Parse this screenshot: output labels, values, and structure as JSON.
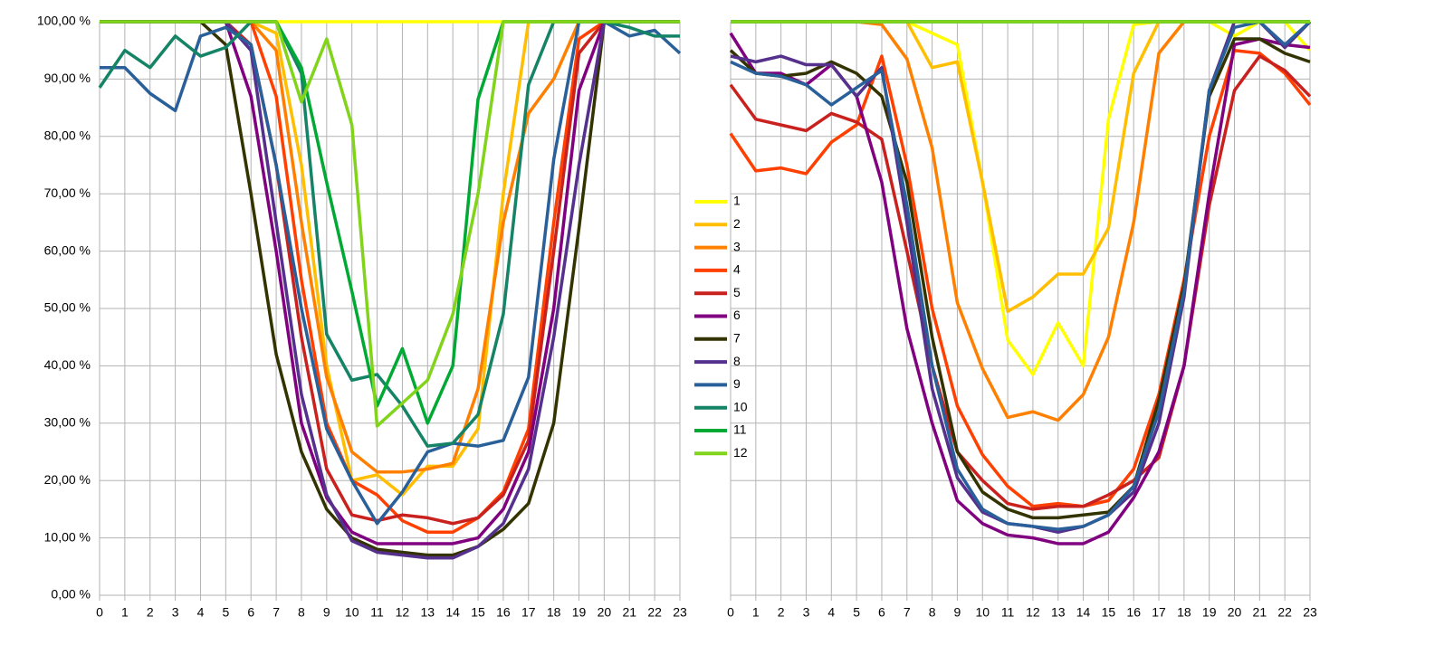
{
  "chart_data": [
    {
      "type": "line",
      "x": [
        0,
        1,
        2,
        3,
        4,
        5,
        6,
        7,
        8,
        9,
        10,
        11,
        12,
        13,
        14,
        15,
        16,
        17,
        18,
        19,
        20,
        21,
        22,
        23
      ],
      "xlim": [
        0,
        23
      ],
      "ylim": [
        0,
        100
      ],
      "yticks": [
        {
          "value": 0,
          "label": "0,00 %"
        },
        {
          "value": 10,
          "label": "10,00 %"
        },
        {
          "value": 20,
          "label": "20,00 %"
        },
        {
          "value": 30,
          "label": "30,00 %"
        },
        {
          "value": 40,
          "label": "40,00 %"
        },
        {
          "value": 50,
          "label": "50,00 %"
        },
        {
          "value": 60,
          "label": "60,00 %"
        },
        {
          "value": 70,
          "label": "70,00 %"
        },
        {
          "value": 80,
          "label": "80,00 %"
        },
        {
          "value": 90,
          "label": "90,00 %"
        },
        {
          "value": 100,
          "label": "100,00 %"
        }
      ],
      "grid": true,
      "series": [
        {
          "name": "1",
          "color": "#ffff00",
          "values": [
            100,
            100,
            100,
            100,
            100,
            100,
            100,
            100,
            100,
            100,
            100,
            100,
            100,
            100,
            100,
            100,
            100,
            100,
            100,
            100,
            100,
            100,
            100,
            100
          ]
        },
        {
          "name": "2",
          "color": "#ffbf00",
          "values": [
            100,
            100,
            100,
            100,
            100,
            100,
            100,
            98,
            75,
            40,
            20,
            21,
            17.5,
            22.5,
            22.5,
            29,
            70,
            100,
            100,
            100,
            100,
            100,
            100,
            100
          ]
        },
        {
          "name": "3",
          "color": "#ff8000",
          "values": [
            100,
            100,
            100,
            100,
            100,
            100,
            100,
            95,
            65,
            38,
            25,
            21.5,
            21.5,
            22,
            23,
            36,
            65,
            84,
            90,
            100,
            100,
            100,
            100,
            100
          ]
        },
        {
          "name": "4",
          "color": "#ff4000",
          "values": [
            100,
            100,
            100,
            100,
            100,
            100,
            100,
            87,
            55,
            30,
            20,
            17.5,
            13,
            11,
            11,
            13.5,
            18,
            29,
            65,
            97,
            100,
            100,
            100,
            100
          ]
        },
        {
          "name": "5",
          "color": "#c9211e",
          "values": [
            100,
            100,
            100,
            100,
            100,
            100,
            96,
            75,
            45,
            22,
            14,
            13,
            14,
            13.5,
            12.5,
            13.5,
            17.5,
            27,
            60,
            94.5,
            100,
            100,
            100,
            100
          ]
        },
        {
          "name": "6",
          "color": "#800080",
          "values": [
            100,
            100,
            100,
            100,
            100,
            100,
            87,
            60,
            30,
            17,
            11,
            9,
            9,
            9,
            9,
            10,
            15,
            25,
            50,
            88,
            100,
            100,
            100,
            100
          ]
        },
        {
          "name": "7",
          "color": "#333300",
          "values": [
            100,
            100,
            100,
            100,
            100,
            96,
            70,
            42,
            25,
            15,
            10,
            8,
            7.5,
            7,
            7,
            8.5,
            11.5,
            16,
            30,
            64,
            100,
            100,
            100,
            100
          ]
        },
        {
          "name": "8",
          "color": "#55308d",
          "values": [
            100,
            100,
            100,
            100,
            100,
            100,
            95,
            65,
            35,
            17.5,
            9.5,
            7.5,
            7,
            6.5,
            6.5,
            8.5,
            12.5,
            22,
            45,
            75,
            100,
            100,
            100,
            100
          ]
        },
        {
          "name": "9",
          "color": "#2a6099",
          "values": [
            92,
            92,
            87.5,
            84.5,
            97.5,
            99,
            96,
            75,
            50,
            29,
            20,
            12.5,
            18,
            25,
            26.5,
            26,
            27,
            38,
            76,
            100,
            100,
            97.5,
            98.5,
            94.5
          ]
        },
        {
          "name": "10",
          "color": "#158466",
          "values": [
            88.5,
            95,
            92,
            97.5,
            94,
            95.5,
            100,
            100,
            91,
            45.5,
            37.5,
            38.5,
            33,
            26,
            26.5,
            31.5,
            49,
            89,
            100,
            100,
            100,
            99,
            97.5,
            97.5
          ]
        },
        {
          "name": "11",
          "color": "#00a933",
          "values": [
            100,
            100,
            100,
            100,
            100,
            100,
            100,
            100,
            92,
            72,
            53,
            33,
            43,
            30,
            40,
            86.5,
            100,
            100,
            100,
            100,
            100,
            100,
            100,
            100
          ]
        },
        {
          "name": "12",
          "color": "#81d41a",
          "values": [
            100,
            100,
            100,
            100,
            100,
            100,
            100,
            100,
            86,
            97,
            82,
            29.5,
            33.5,
            37.5,
            49,
            70,
            100,
            100,
            100,
            100,
            100,
            100,
            100,
            100
          ]
        }
      ]
    },
    {
      "type": "line",
      "x": [
        0,
        1,
        2,
        3,
        4,
        5,
        6,
        7,
        8,
        9,
        10,
        11,
        12,
        13,
        14,
        15,
        16,
        17,
        18,
        19,
        20,
        21,
        22,
        23
      ],
      "xlim": [
        0,
        23
      ],
      "ylim": [
        0,
        100
      ],
      "yticks": [
        0,
        10,
        20,
        30,
        40,
        50,
        60,
        70,
        80,
        90,
        100
      ],
      "grid": true,
      "series": [
        {
          "color": "#ffff00",
          "values": [
            100,
            100,
            100,
            100,
            100,
            100,
            100,
            100,
            98,
            96,
            72,
            44.5,
            38.5,
            47.5,
            40,
            83,
            99.5,
            100,
            100,
            100,
            97.5,
            100,
            100,
            95
          ]
        },
        {
          "color": "#ffbf00",
          "values": [
            100,
            100,
            100,
            100,
            100,
            100,
            100,
            100,
            92,
            93,
            72,
            49.5,
            52,
            56,
            56,
            64,
            91,
            100,
            100,
            100,
            100,
            100,
            100,
            100
          ]
        },
        {
          "color": "#ff8000",
          "values": [
            100,
            100,
            100,
            100,
            100,
            100,
            99.5,
            93.5,
            78,
            51,
            39.5,
            31,
            32,
            30.5,
            35,
            45,
            65,
            94.5,
            100,
            100,
            100,
            100,
            100,
            100
          ]
        },
        {
          "color": "#ff4000",
          "values": [
            80.5,
            74,
            74.5,
            73.5,
            79,
            82,
            94,
            75,
            50,
            33,
            24.5,
            19,
            15.5,
            16,
            15.5,
            16.5,
            22,
            35,
            55,
            80,
            95,
            94.5,
            91,
            85.5
          ]
        },
        {
          "color": "#c9211e",
          "values": [
            89,
            83,
            82,
            81,
            84,
            82.5,
            79.5,
            60,
            40,
            25,
            20,
            16,
            15,
            15.5,
            15.5,
            17.5,
            20,
            24,
            40,
            68,
            88,
            94,
            91.5,
            87
          ]
        },
        {
          "color": "#800080",
          "values": [
            98,
            91,
            91,
            89,
            92.5,
            87,
            72,
            46.5,
            30,
            16.5,
            12.5,
            10.5,
            10,
            9,
            9,
            11,
            17,
            25,
            40,
            70,
            96,
            97,
            96,
            95.5
          ]
        },
        {
          "color": "#333300",
          "values": [
            95,
            91,
            90.5,
            91,
            93,
            91,
            87,
            72,
            45,
            25,
            18,
            15,
            13.5,
            13.5,
            14,
            14.5,
            19,
            34,
            54,
            87,
            97,
            97,
            94.5,
            93
          ]
        },
        {
          "color": "#55308d",
          "values": [
            94,
            93,
            94,
            92.5,
            92.5,
            87,
            92,
            65,
            36,
            20.5,
            14.5,
            12.5,
            12,
            11,
            12,
            14,
            18,
            30,
            52,
            88,
            100,
            100,
            95.5,
            100
          ]
        },
        {
          "color": "#2a6099",
          "values": [
            93,
            91,
            90.5,
            89,
            85.5,
            88.5,
            91.5,
            68,
            40,
            22,
            15,
            12.5,
            12,
            11.5,
            12,
            14,
            19,
            32,
            53,
            88,
            99,
            100,
            96,
            100
          ]
        },
        {
          "color": "#158466",
          "values": [
            100,
            100,
            100,
            100,
            100,
            100,
            100,
            100,
            100,
            100,
            100,
            100,
            100,
            100,
            100,
            100,
            100,
            100,
            100,
            100,
            100,
            100,
            100,
            100
          ]
        },
        {
          "color": "#00a933",
          "values": [
            100,
            100,
            100,
            100,
            100,
            100,
            100,
            100,
            100,
            100,
            100,
            100,
            100,
            100,
            100,
            100,
            100,
            100,
            100,
            100,
            100,
            100,
            100,
            100
          ]
        },
        {
          "color": "#81d41a",
          "values": [
            100,
            100,
            100,
            100,
            100,
            100,
            100,
            100,
            100,
            100,
            100,
            100,
            100,
            100,
            100,
            100,
            100,
            100,
            100,
            100,
            100,
            100,
            100,
            100
          ]
        }
      ]
    }
  ]
}
